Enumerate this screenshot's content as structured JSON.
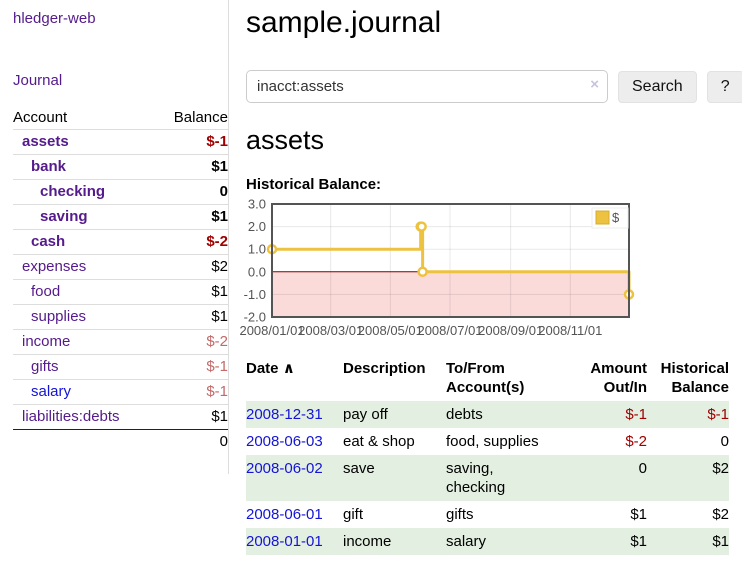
{
  "colors": {
    "purple": "#551A8B",
    "blue": "#1414d6",
    "neg": "#a00000",
    "neg_soft": "#c46868",
    "stripe": "#e3efe0"
  },
  "app": {
    "brand": "hledger-web"
  },
  "sidebar": {
    "nav_journal": "Journal",
    "accounts": {
      "headers": {
        "account": "Account",
        "balance": "Balance"
      },
      "rows": [
        {
          "label": "assets",
          "depth": 1,
          "balance": "$-1",
          "emph": true,
          "neg": "strong",
          "link": "purple"
        },
        {
          "label": "bank",
          "depth": 2,
          "balance": "$1",
          "emph": true,
          "neg": null,
          "link": "purple"
        },
        {
          "label": "checking",
          "depth": 3,
          "balance": "0",
          "emph": true,
          "neg": null,
          "link": "purple"
        },
        {
          "label": "saving",
          "depth": 3,
          "balance": "$1",
          "emph": true,
          "neg": null,
          "link": "purple"
        },
        {
          "label": "cash",
          "depth": 2,
          "balance": "$-2",
          "emph": true,
          "neg": "strong",
          "link": "purple"
        },
        {
          "label": "expenses",
          "depth": 1,
          "balance": "$2",
          "emph": false,
          "neg": null,
          "link": "purple"
        },
        {
          "label": "food",
          "depth": 2,
          "balance": "$1",
          "emph": false,
          "neg": null,
          "link": "purple"
        },
        {
          "label": "supplies",
          "depth": 2,
          "balance": "$1",
          "emph": false,
          "neg": null,
          "link": "purple"
        },
        {
          "label": "income",
          "depth": 1,
          "balance": "$-2",
          "emph": false,
          "neg": "soft",
          "link": "purple"
        },
        {
          "label": "gifts",
          "depth": 2,
          "balance": "$-1",
          "emph": false,
          "neg": "soft",
          "link": "purple"
        },
        {
          "label": "salary",
          "depth": 2,
          "balance": "$-1",
          "emph": false,
          "neg": "soft",
          "link": "blue"
        },
        {
          "label": "liabilities:debts",
          "depth": 1,
          "balance": "$1",
          "emph": false,
          "neg": null,
          "link": "purple"
        }
      ],
      "total": "0"
    }
  },
  "main": {
    "title": "sample.journal",
    "search": {
      "value": "inacct:assets",
      "clear": "×",
      "button_label": "Search",
      "help_label": "?"
    },
    "heading": "assets",
    "chart_label": "Historical Balance:",
    "register": {
      "headers": {
        "date": "Date",
        "sort_icon": "∧",
        "description": "Description",
        "accounts": "To/From Account(s)",
        "amount": "Amount Out/In",
        "balance": "Historical Balance"
      },
      "rows": [
        {
          "date": "2008-12-31",
          "description": "pay off",
          "accounts": "debts",
          "amount": "$-1",
          "balance": "$-1",
          "amount_neg": true,
          "balance_neg": true
        },
        {
          "date": "2008-06-03",
          "description": "eat & shop",
          "accounts": "food, supplies",
          "amount": "$-2",
          "balance": "0",
          "amount_neg": true,
          "balance_neg": false
        },
        {
          "date": "2008-06-02",
          "description": "save",
          "accounts": "saving, checking",
          "amount": "0",
          "balance": "$2",
          "amount_neg": false,
          "balance_neg": false
        },
        {
          "date": "2008-06-01",
          "description": "gift",
          "accounts": "gifts",
          "amount": "$1",
          "balance": "$2",
          "amount_neg": false,
          "balance_neg": false
        },
        {
          "date": "2008-01-01",
          "description": "income",
          "accounts": "salary",
          "amount": "$1",
          "balance": "$1",
          "amount_neg": false,
          "balance_neg": false
        }
      ]
    }
  },
  "chart_data": {
    "type": "line",
    "title": "Historical Balance:",
    "x_domain": [
      "2008-01-01",
      "2008-12-31"
    ],
    "ylim": [
      -2,
      3
    ],
    "yticks": [
      {
        "label": "3.0",
        "value": 3
      },
      {
        "label": "2.0",
        "value": 2
      },
      {
        "label": "1.0",
        "value": 1
      },
      {
        "label": "0.0",
        "value": 0
      },
      {
        "label": "-1.0",
        "value": -1
      },
      {
        "label": "-2.0",
        "value": -2
      }
    ],
    "xticks": [
      {
        "label": "2008/01/01",
        "date": "2008-01-01"
      },
      {
        "label": "2008/03/01",
        "date": "2008-03-01"
      },
      {
        "label": "2008/05/01",
        "date": "2008-05-01"
      },
      {
        "label": "2008/07/01",
        "date": "2008-07-01"
      },
      {
        "label": "2008/09/01",
        "date": "2008-09-01"
      },
      {
        "label": "2008/11/01",
        "date": "2008-11-01"
      }
    ],
    "series": [
      {
        "name": "$",
        "color": "#edc240",
        "step": true,
        "marker": "hollow-circle",
        "points": [
          {
            "date": "2008-01-01",
            "value": 1
          },
          {
            "date": "2008-06-01",
            "value": 2
          },
          {
            "date": "2008-06-02",
            "value": 2
          },
          {
            "date": "2008-06-03",
            "value": 0
          },
          {
            "date": "2008-12-31",
            "value": -1
          }
        ]
      }
    ],
    "legend": [
      {
        "label": "$",
        "color": "#edc240"
      }
    ],
    "grid": true,
    "zero_line_color": "#8b0000",
    "negative_region_color": "#fbdada",
    "border_color": "#545454"
  }
}
